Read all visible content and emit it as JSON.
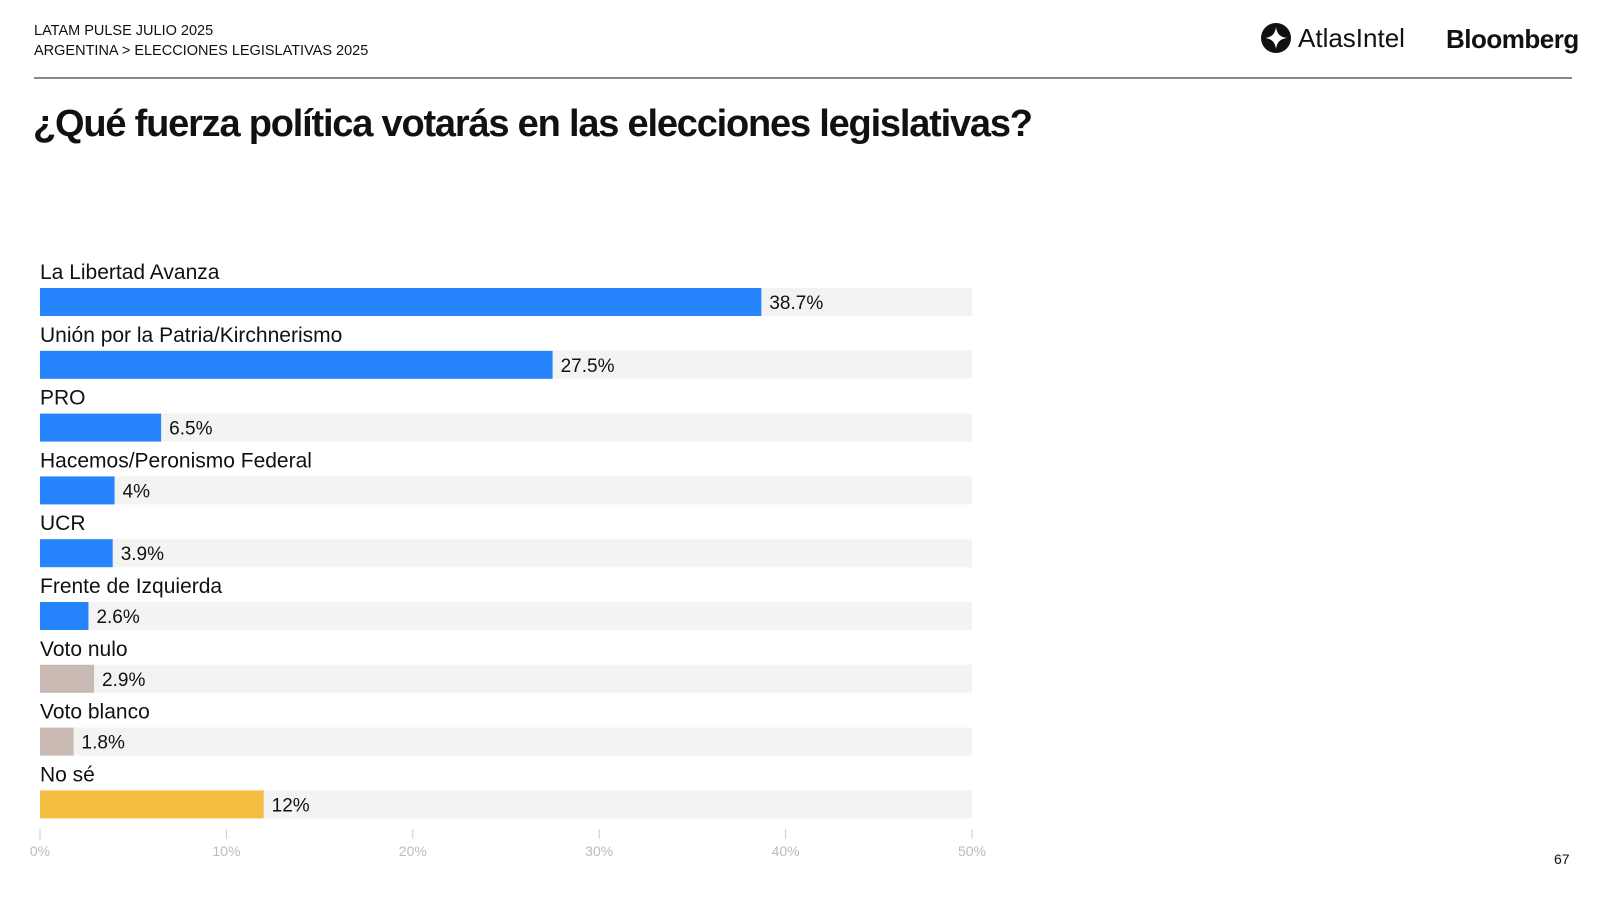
{
  "header": {
    "line1": "LATAM PULSE JULIO 2025",
    "line2": "ARGENTINA > ELECCIONES LEGISLATIVAS 2025",
    "logo_atlas": "AtlasIntel",
    "logo_bloomberg": "Bloomberg"
  },
  "title": "¿Qué fuerza política votarás en las elecciones legislativas?",
  "page_number": "67",
  "colors": {
    "blue": "#2684FC",
    "gray": "#C8BAB2",
    "yellow": "#F5BD42",
    "track": "#F3F3F2"
  },
  "chart_data": {
    "type": "bar",
    "orientation": "horizontal",
    "title": "¿Qué fuerza política votarás en las elecciones legislativas?",
    "categories": [
      "La Libertad Avanza",
      "Unión por la Patria/Kirchnerismo",
      "PRO",
      "Hacemos/Peronismo Federal",
      "UCR",
      "Frente de Izquierda",
      "Voto nulo",
      "Voto blanco",
      "No sé"
    ],
    "values": [
      38.7,
      27.5,
      6.5,
      4,
      3.9,
      2.6,
      2.9,
      1.8,
      12
    ],
    "labels": [
      "38.7%",
      "27.5%",
      "6.5%",
      "4%",
      "3.9%",
      "2.6%",
      "2.9%",
      "1.8%",
      "12%"
    ],
    "color_keys": [
      "blue",
      "blue",
      "blue",
      "blue",
      "blue",
      "blue",
      "gray",
      "gray",
      "yellow"
    ],
    "xlim": [
      0,
      50
    ],
    "xticks": [
      "0%",
      "10%",
      "20%",
      "30%",
      "40%",
      "50%"
    ],
    "xlabel": "",
    "ylabel": "",
    "grid": false
  }
}
